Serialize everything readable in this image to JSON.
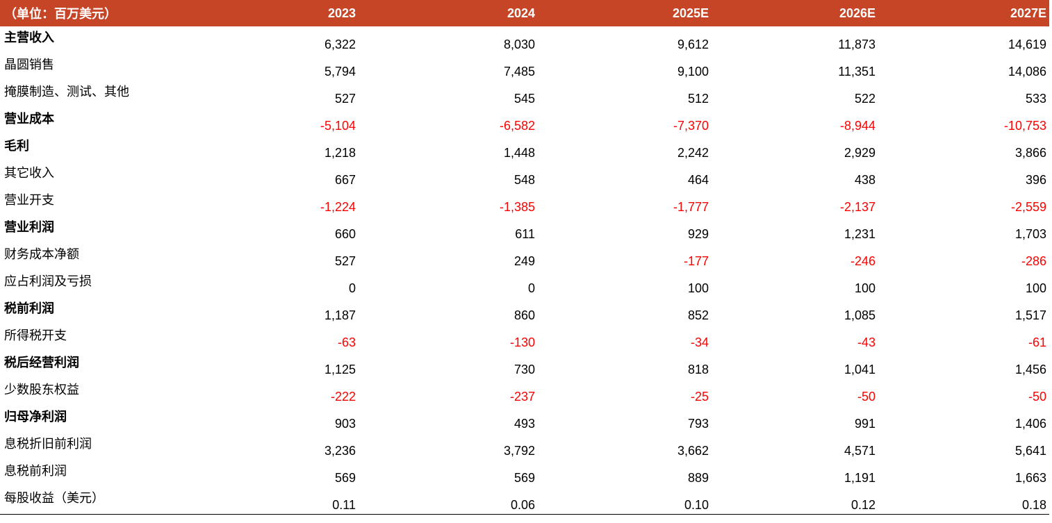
{
  "table": {
    "header": {
      "label": "（单位：百万美元）",
      "years": [
        "2023",
        "2024",
        "2025E",
        "2026E",
        "2027E"
      ]
    },
    "rows": [
      {
        "label": "主营收入",
        "bold": true,
        "values": [
          "6,322",
          "8,030",
          "9,612",
          "11,873",
          "14,619"
        ]
      },
      {
        "label": "晶圆销售",
        "bold": false,
        "values": [
          "5,794",
          "7,485",
          "9,100",
          "11,351",
          "14,086"
        ]
      },
      {
        "label": "掩膜制造、测试、其他",
        "bold": false,
        "values": [
          "527",
          "545",
          "512",
          "522",
          "533"
        ]
      },
      {
        "label": "营业成本",
        "bold": true,
        "values": [
          "-5,104",
          "-6,582",
          "-7,370",
          "-8,944",
          "-10,753"
        ]
      },
      {
        "label": "毛利",
        "bold": true,
        "values": [
          "1,218",
          "1,448",
          "2,242",
          "2,929",
          "3,866"
        ]
      },
      {
        "label": "其它收入",
        "bold": false,
        "values": [
          "667",
          "548",
          "464",
          "438",
          "396"
        ]
      },
      {
        "label": "营业开支",
        "bold": false,
        "values": [
          "-1,224",
          "-1,385",
          "-1,777",
          "-2,137",
          "-2,559"
        ]
      },
      {
        "label": "营业利润",
        "bold": true,
        "values": [
          "660",
          "611",
          "929",
          "1,231",
          "1,703"
        ]
      },
      {
        "label": "财务成本净额",
        "bold": false,
        "values": [
          "527",
          "249",
          "-177",
          "-246",
          "-286"
        ]
      },
      {
        "label": "应占利润及亏损",
        "bold": false,
        "values": [
          "0",
          "0",
          "100",
          "100",
          "100"
        ]
      },
      {
        "label": "税前利润",
        "bold": true,
        "values": [
          "1,187",
          "860",
          "852",
          "1,085",
          "1,517"
        ]
      },
      {
        "label": "所得税开支",
        "bold": false,
        "values": [
          "-63",
          "-130",
          "-34",
          "-43",
          "-61"
        ]
      },
      {
        "label": "税后经营利润",
        "bold": true,
        "values": [
          "1,125",
          "730",
          "818",
          "1,041",
          "1,456"
        ]
      },
      {
        "label": "少数股东权益",
        "bold": false,
        "values": [
          "-222",
          "-237",
          "-25",
          "-50",
          "-50"
        ]
      },
      {
        "label": "归母净利润",
        "bold": true,
        "values": [
          "903",
          "493",
          "793",
          "991",
          "1,406"
        ]
      },
      {
        "label": "息税折旧前利润",
        "bold": false,
        "values": [
          "3,236",
          "3,792",
          "3,662",
          "4,571",
          "5,641"
        ]
      },
      {
        "label": "息税前利润",
        "bold": false,
        "values": [
          "569",
          "569",
          "889",
          "1,191",
          "1,663"
        ]
      },
      {
        "label": "每股收益（美元）",
        "bold": false,
        "values": [
          "0.11",
          "0.06",
          "0.10",
          "0.12",
          "0.18"
        ]
      }
    ]
  },
  "colors": {
    "header_bg": "#c74527",
    "header_text": "#ffffff",
    "negative": "#ff0000",
    "text": "#000000"
  }
}
